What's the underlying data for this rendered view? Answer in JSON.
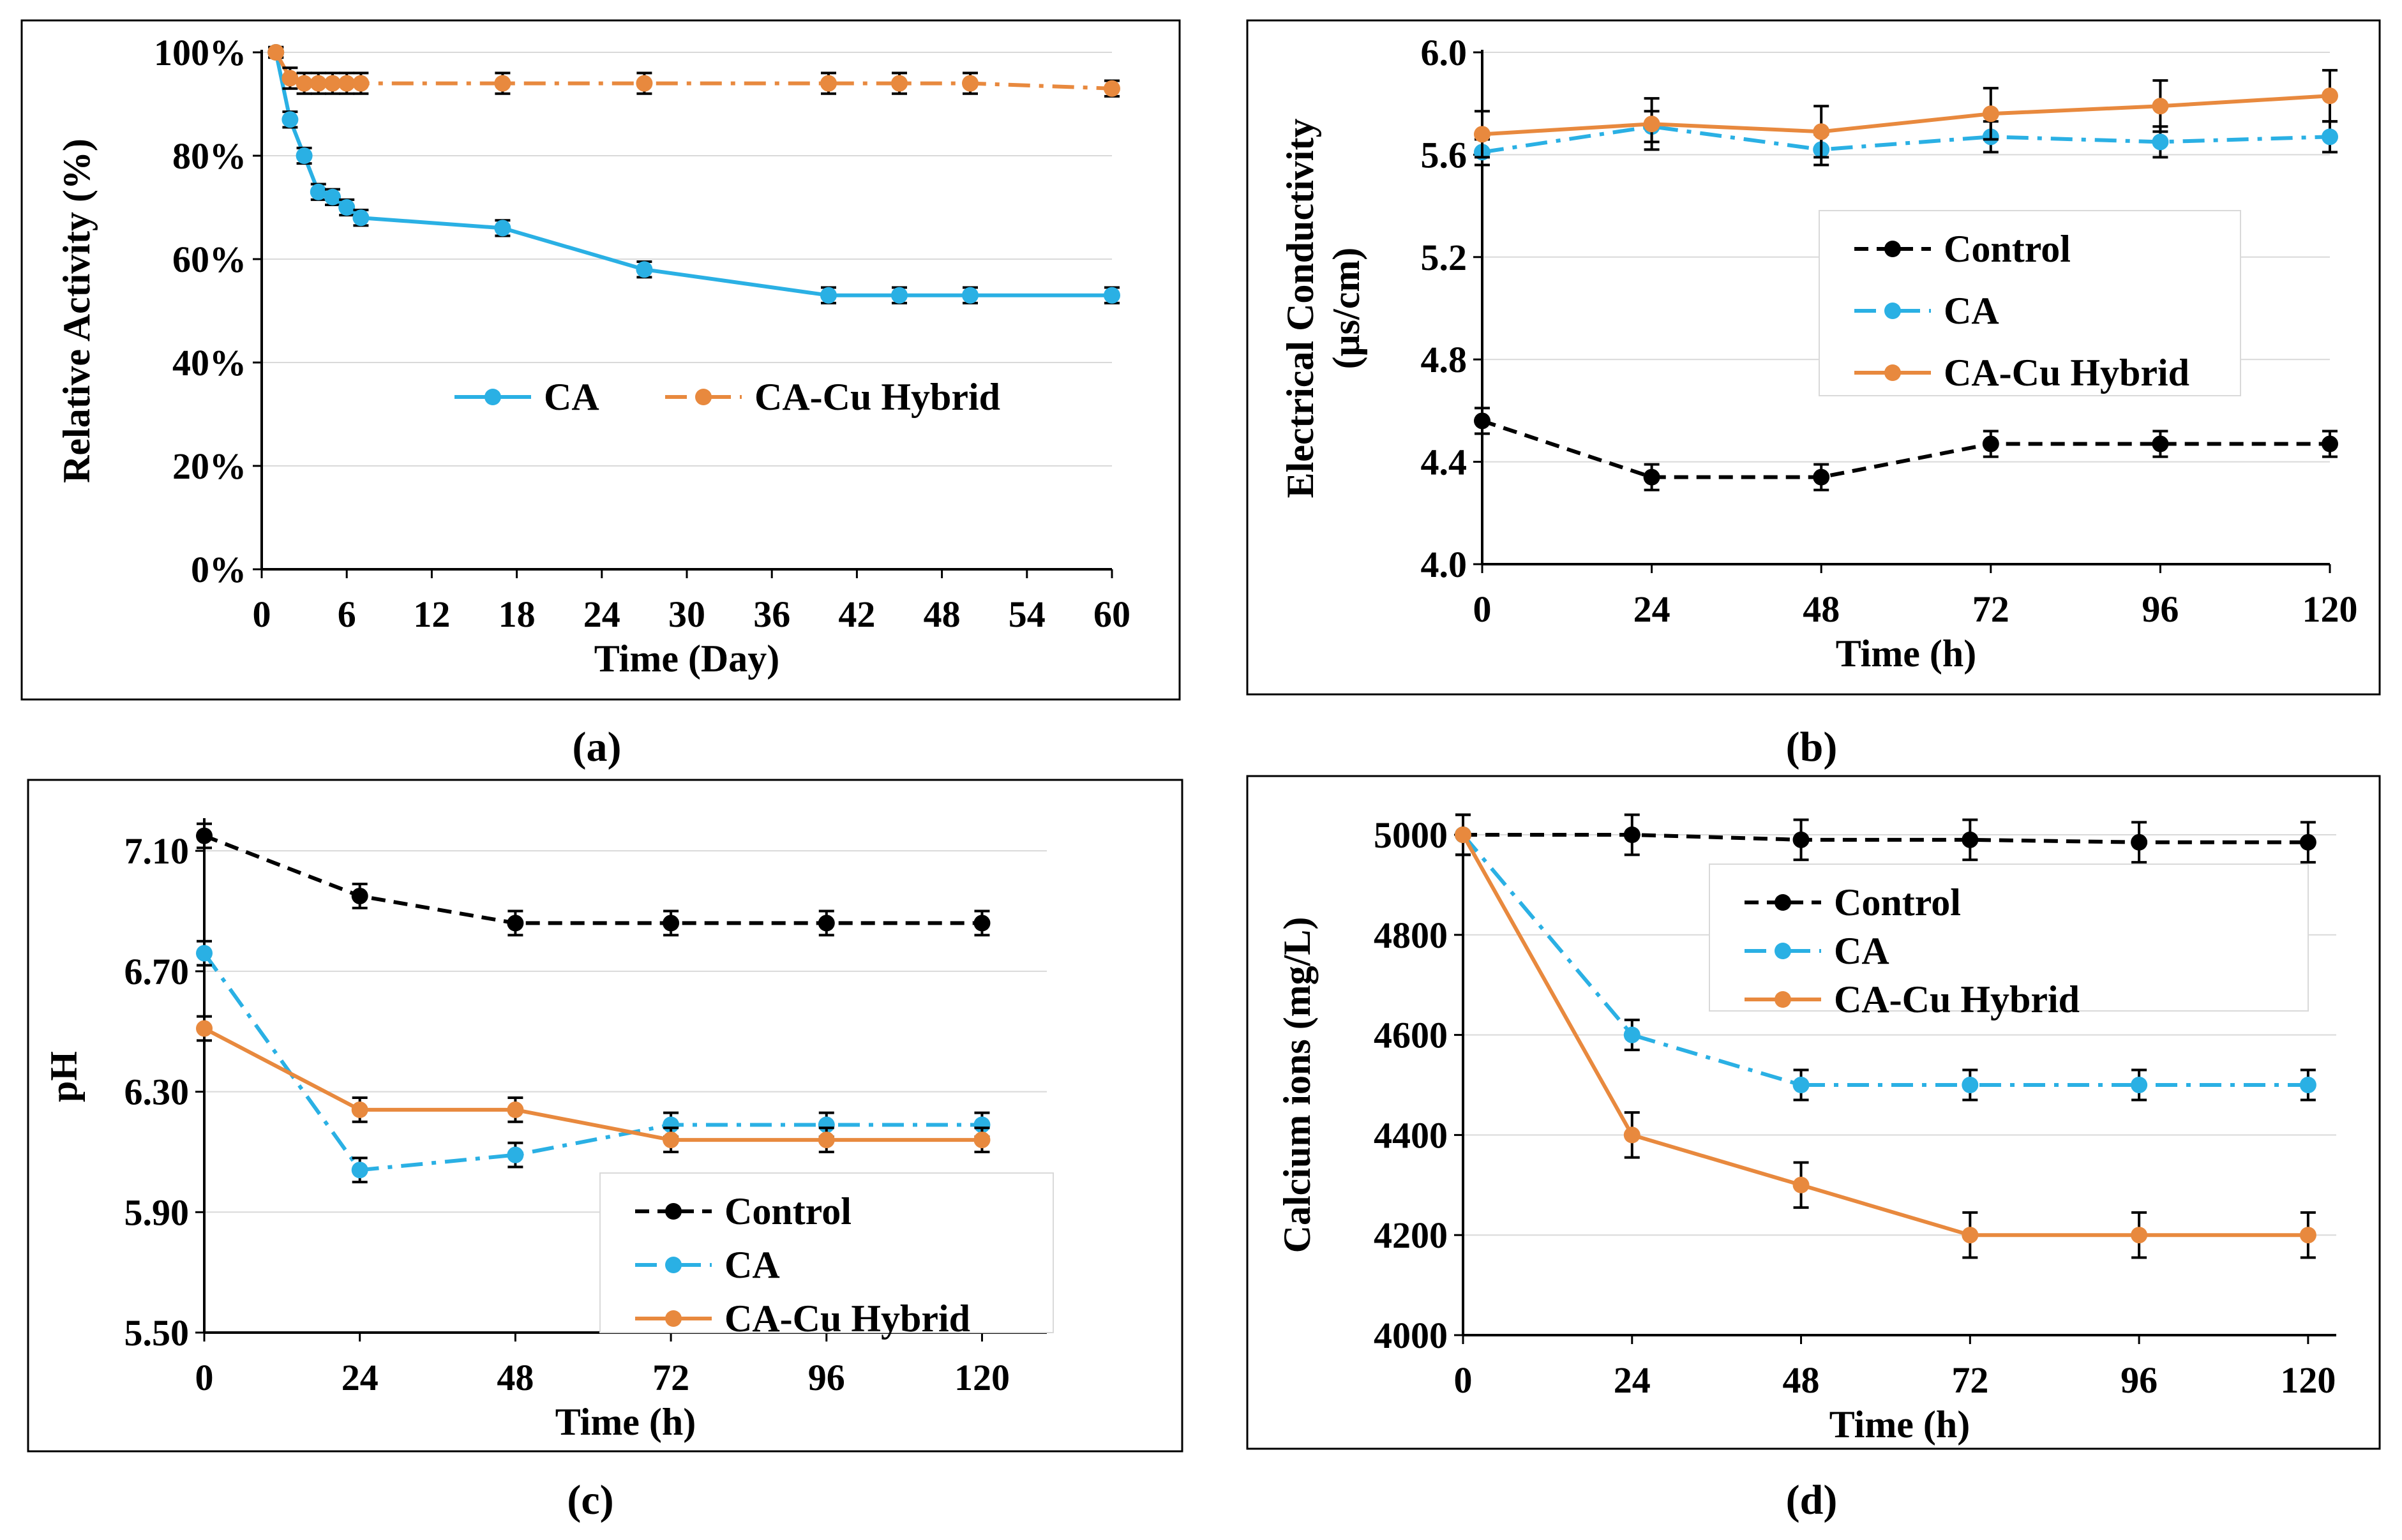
{
  "chart_data": [
    {
      "id": "a",
      "panel_label": "(a)",
      "type": "line",
      "xlabel": "Time (Day)",
      "ylabel": "Relative Activity (%)",
      "xlim": [
        0,
        60
      ],
      "ylim": [
        0,
        100
      ],
      "xticks": [
        0,
        6,
        12,
        18,
        24,
        30,
        36,
        42,
        48,
        54,
        60
      ],
      "yticks": [
        0,
        20,
        40,
        60,
        80,
        100
      ],
      "ytick_labels": [
        "0%",
        "20%",
        "40%",
        "60%",
        "80%",
        "100%"
      ],
      "grid": "horizontal",
      "legend": "center-right, horizontal",
      "series": [
        {
          "name": "CA",
          "color": "#2ab0e4",
          "dash": "solid",
          "x": [
            1,
            2,
            3,
            4,
            5,
            6,
            7,
            17,
            27,
            40,
            45,
            50,
            60
          ],
          "y": [
            100,
            87,
            80,
            73,
            72,
            70,
            68,
            66,
            58,
            53,
            53,
            53,
            53
          ],
          "err": [
            1,
            1.5,
            1.5,
            1.5,
            1.5,
            1.5,
            1.5,
            1.5,
            1.5,
            1.5,
            1.5,
            1.5,
            1.5
          ]
        },
        {
          "name": "CA-Cu Hybrid",
          "color": "#e8893e",
          "dash": "dashdot",
          "x": [
            1,
            2,
            3,
            4,
            5,
            6,
            7,
            17,
            27,
            40,
            45,
            50,
            60
          ],
          "y": [
            100,
            95,
            94,
            94,
            94,
            94,
            94,
            94,
            94,
            94,
            94,
            94,
            93
          ],
          "err": [
            1,
            2,
            2,
            2,
            2,
            2,
            2,
            2,
            2,
            2,
            2,
            2,
            1.5
          ]
        }
      ]
    },
    {
      "id": "b",
      "panel_label": "(b)",
      "type": "line",
      "xlabel": "Time (h)",
      "ylabel": "Electrical Conductivity (μs/cm)",
      "ylabel_lines": [
        "Electrical Conductivity",
        "(μs/cm)"
      ],
      "xlim": [
        0,
        120
      ],
      "ylim": [
        4.0,
        6.0
      ],
      "xticks": [
        0,
        24,
        48,
        72,
        96,
        120
      ],
      "yticks": [
        4.0,
        4.4,
        4.8,
        5.2,
        5.6,
        6.0
      ],
      "ytick_labels": [
        "4.0",
        "4.4",
        "4.8",
        "5.2",
        "5.6",
        "6.0"
      ],
      "grid": "horizontal",
      "legend": "center-right, boxed",
      "series": [
        {
          "name": "Control",
          "color": "#000000",
          "dash": "dashed",
          "x": [
            0,
            24,
            48,
            72,
            96,
            120
          ],
          "y": [
            4.56,
            4.34,
            4.34,
            4.47,
            4.47,
            4.47
          ],
          "err": [
            0.05,
            0.05,
            0.05,
            0.05,
            0.05,
            0.05
          ]
        },
        {
          "name": "CA",
          "color": "#2ab0e4",
          "dash": "dashdot",
          "x": [
            0,
            24,
            48,
            72,
            96,
            120
          ],
          "y": [
            5.61,
            5.71,
            5.62,
            5.67,
            5.65,
            5.67
          ],
          "err": [
            0.05,
            0.06,
            0.06,
            0.06,
            0.06,
            0.06
          ]
        },
        {
          "name": "CA-Cu Hybrid",
          "color": "#e8893e",
          "dash": "solid",
          "x": [
            0,
            24,
            48,
            72,
            96,
            120
          ],
          "y": [
            5.68,
            5.72,
            5.69,
            5.76,
            5.79,
            5.83
          ],
          "err": [
            0.09,
            0.1,
            0.1,
            0.1,
            0.1,
            0.1
          ]
        }
      ]
    },
    {
      "id": "c",
      "panel_label": "(c)",
      "type": "line",
      "xlabel": "Time (h)",
      "ylabel": "pH",
      "xlim": [
        0,
        130
      ],
      "ylim": [
        5.5,
        7.2
      ],
      "xticks": [
        0,
        24,
        48,
        72,
        96,
        120
      ],
      "yticks": [
        5.5,
        5.9,
        6.3,
        6.7,
        7.1
      ],
      "ytick_labels": [
        "5.50",
        "5.90",
        "6.30",
        "6.70",
        "7.10"
      ],
      "grid": "horizontal",
      "legend": "bottom-right, boxed",
      "series": [
        {
          "name": "Control",
          "color": "#000000",
          "dash": "dashed",
          "x": [
            0,
            24,
            48,
            72,
            96,
            120
          ],
          "y": [
            7.15,
            6.95,
            6.86,
            6.86,
            6.86,
            6.86
          ],
          "err": [
            0.04,
            0.04,
            0.04,
            0.04,
            0.04,
            0.04
          ]
        },
        {
          "name": "CA",
          "color": "#2ab0e4",
          "dash": "dashdot",
          "x": [
            0,
            24,
            48,
            72,
            96,
            120
          ],
          "y": [
            6.76,
            6.04,
            6.09,
            6.19,
            6.19,
            6.19
          ],
          "err": [
            0.04,
            0.04,
            0.04,
            0.04,
            0.04,
            0.04
          ]
        },
        {
          "name": "CA-Cu Hybrid",
          "color": "#e8893e",
          "dash": "solid",
          "x": [
            0,
            24,
            48,
            72,
            96,
            120
          ],
          "y": [
            6.51,
            6.24,
            6.24,
            6.14,
            6.14,
            6.14
          ],
          "err": [
            0.04,
            0.04,
            0.04,
            0.04,
            0.04,
            0.04
          ]
        }
      ]
    },
    {
      "id": "d",
      "panel_label": "(d)",
      "type": "line",
      "xlabel": "Time (h)",
      "ylabel": "Calcium ions (mg/L)",
      "xlim": [
        0,
        124
      ],
      "ylim": [
        4000,
        5000
      ],
      "xticks": [
        0,
        24,
        48,
        72,
        96,
        120
      ],
      "yticks": [
        4000,
        4200,
        4400,
        4600,
        4800,
        5000
      ],
      "ytick_labels": [
        "4000",
        "4200",
        "4400",
        "4600",
        "4800",
        "5000"
      ],
      "grid": "horizontal",
      "legend": "top-right, boxed",
      "series": [
        {
          "name": "Control",
          "color": "#000000",
          "dash": "dashed",
          "x": [
            0,
            24,
            48,
            72,
            96,
            120
          ],
          "y": [
            5000,
            5000,
            4990,
            4990,
            4985,
            4985
          ],
          "err": [
            40,
            40,
            40,
            40,
            40,
            40
          ]
        },
        {
          "name": "CA",
          "color": "#2ab0e4",
          "dash": "dashdot",
          "x": [
            0,
            24,
            48,
            72,
            96,
            120
          ],
          "y": [
            5000,
            4600,
            4500,
            4500,
            4500,
            4500
          ],
          "err": [
            40,
            30,
            30,
            30,
            30,
            30
          ]
        },
        {
          "name": "CA-Cu Hybrid",
          "color": "#e8893e",
          "dash": "solid",
          "x": [
            0,
            24,
            48,
            72,
            96,
            120
          ],
          "y": [
            5000,
            4400,
            4300,
            4200,
            4200,
            4200
          ],
          "err": [
            40,
            45,
            45,
            45,
            45,
            45
          ]
        }
      ]
    }
  ]
}
